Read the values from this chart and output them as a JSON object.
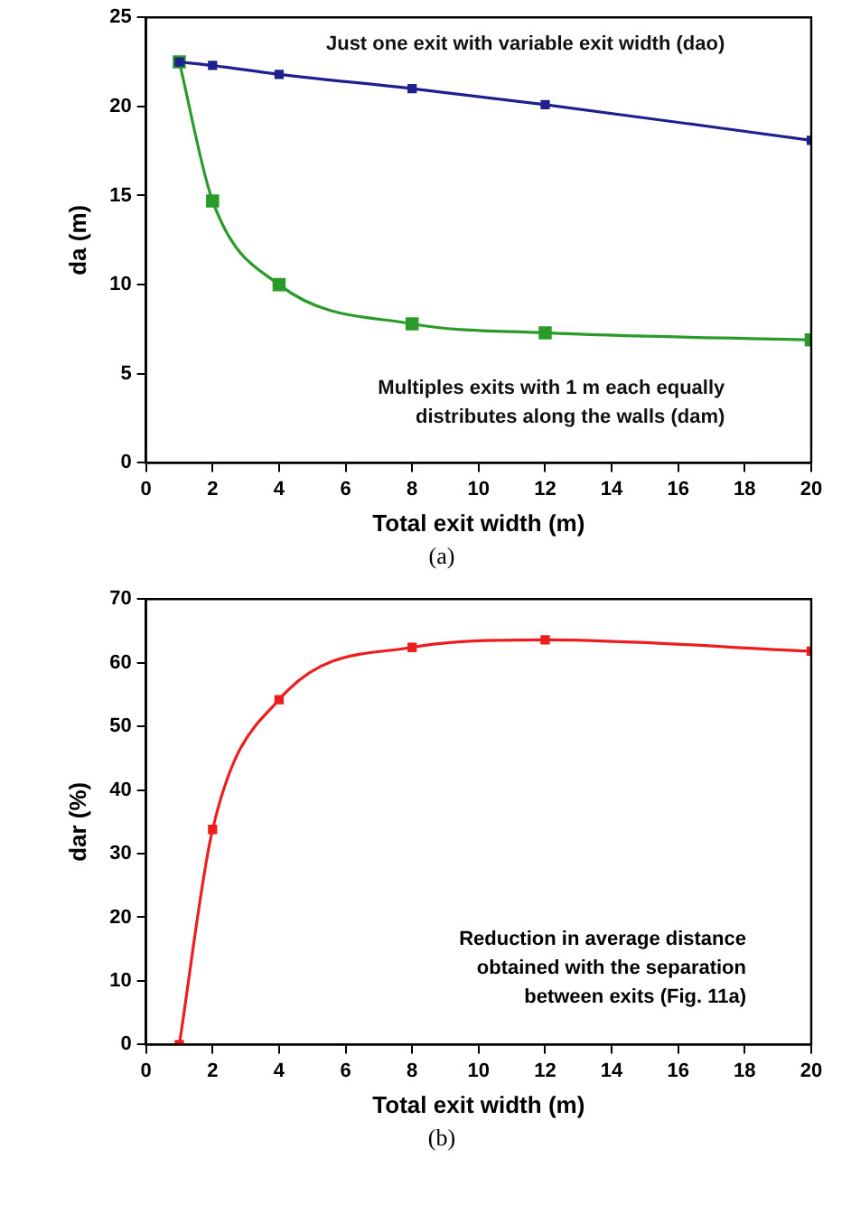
{
  "chart_data": [
    {
      "type": "line",
      "xlabel": "Total exit width (m)",
      "ylabel": "da (m)",
      "x": [
        1,
        2,
        4,
        8,
        12,
        20
      ],
      "series": [
        {
          "name": "Just one exit with variable exit width (dao)",
          "color": "#1f1f8f",
          "values": [
            22.5,
            22.3,
            21.8,
            21.0,
            20.1,
            18.1
          ]
        },
        {
          "name": "Multiples exits with 1 m each equally distributes along the walls (dam)",
          "color": "#2a9a2a",
          "values": [
            22.5,
            14.7,
            10.0,
            7.8,
            7.3,
            6.9
          ]
        }
      ],
      "xlim": [
        0,
        20
      ],
      "xticks": [
        0,
        2,
        4,
        6,
        8,
        10,
        12,
        14,
        16,
        18,
        20
      ],
      "ylim": [
        0,
        25
      ],
      "yticks": [
        0,
        5,
        10,
        15,
        20,
        25
      ],
      "marker": "square",
      "annotations": [
        "(a)"
      ]
    },
    {
      "type": "line",
      "xlabel": "Total exit width (m)",
      "ylabel": "dar (%)",
      "x": [
        1,
        2,
        4,
        8,
        12,
        20
      ],
      "series": [
        {
          "color": "#ee1c1c",
          "values": [
            0,
            33.8,
            54.2,
            62.4,
            63.6,
            61.8
          ]
        }
      ],
      "xlim": [
        0,
        20
      ],
      "xticks": [
        0,
        2,
        4,
        6,
        8,
        10,
        12,
        14,
        16,
        18,
        20
      ],
      "ylim": [
        0,
        70
      ],
      "yticks": [
        0,
        10,
        20,
        30,
        40,
        50,
        60,
        70
      ],
      "marker": "square",
      "annotations": [
        "Reduction in average distance obtained with the separation between exits (Fig. 11a)",
        "(b)"
      ]
    }
  ]
}
